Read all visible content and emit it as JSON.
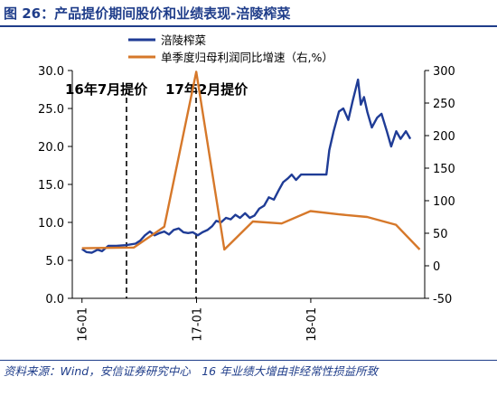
{
  "title": "图 26：产品提价期间股价和业绩表现-涪陵榨菜",
  "source": "资料来源：Wind，安信证券研究中心　16 年业绩大增由非经常性损益所致",
  "colors": {
    "blue": "#1f3c96",
    "orange": "#d6782a",
    "text_blue": "#1f3d8a"
  },
  "chart_data": {
    "type": "line",
    "title": "",
    "x_ticks": [
      "16-01",
      "17-01",
      "18-01"
    ],
    "y_left": {
      "range": [
        0,
        30
      ],
      "ticks": [
        "0.0",
        "5.0",
        "10.0",
        "15.0",
        "20.0",
        "25.0",
        "30.0"
      ]
    },
    "y_right": {
      "range": [
        -50,
        300
      ],
      "ticks": [
        "-50",
        "0",
        "50",
        "100",
        "150",
        "200",
        "250",
        "300"
      ]
    },
    "annotations": [
      {
        "label": "16年7月提价",
        "date": "2016-07"
      },
      {
        "label": "17年2月提价",
        "date": "2017-02"
      }
    ],
    "series": [
      {
        "name": "涪陵榨菜",
        "axis": "left",
        "points": [
          [
            "2016-01-01",
            6.5
          ],
          [
            "2016-01-15",
            6.1
          ],
          [
            "2016-02-01",
            6.0
          ],
          [
            "2016-02-20",
            6.4
          ],
          [
            "2016-03-05",
            6.2
          ],
          [
            "2016-03-25",
            6.9
          ],
          [
            "2016-04-20",
            6.9
          ],
          [
            "2016-05-20",
            7.0
          ],
          [
            "2016-06-20",
            7.2
          ],
          [
            "2016-07-05",
            7.6
          ],
          [
            "2016-07-20",
            8.3
          ],
          [
            "2016-08-05",
            8.8
          ],
          [
            "2016-08-20",
            8.3
          ],
          [
            "2016-09-05",
            8.6
          ],
          [
            "2016-09-20",
            8.8
          ],
          [
            "2016-10-05",
            8.4
          ],
          [
            "2016-10-20",
            9.0
          ],
          [
            "2016-11-05",
            9.2
          ],
          [
            "2016-11-20",
            8.7
          ],
          [
            "2016-12-05",
            8.6
          ],
          [
            "2016-12-20",
            8.7
          ],
          [
            "2017-01-05",
            8.3
          ],
          [
            "2017-01-20",
            8.7
          ],
          [
            "2017-02-05",
            9.0
          ],
          [
            "2017-02-20",
            9.5
          ],
          [
            "2017-03-05",
            10.2
          ],
          [
            "2017-03-20",
            10.0
          ],
          [
            "2017-04-05",
            10.6
          ],
          [
            "2017-04-20",
            10.4
          ],
          [
            "2017-05-05",
            11.0
          ],
          [
            "2017-05-20",
            10.6
          ],
          [
            "2017-06-05",
            11.2
          ],
          [
            "2017-06-20",
            10.6
          ],
          [
            "2017-07-05",
            10.9
          ],
          [
            "2017-07-20",
            11.8
          ],
          [
            "2017-08-05",
            12.2
          ],
          [
            "2017-08-20",
            13.3
          ],
          [
            "2017-09-05",
            13.0
          ],
          [
            "2017-09-20",
            14.2
          ],
          [
            "2017-10-05",
            15.3
          ],
          [
            "2017-10-20",
            15.8
          ],
          [
            "2017-11-01",
            16.3
          ],
          [
            "2017-11-15",
            15.6
          ],
          [
            "2017-12-01",
            16.3
          ],
          [
            "2017-12-20",
            16.3
          ],
          [
            "2018-01-10",
            16.3
          ],
          [
            "2018-02-01",
            16.3
          ],
          [
            "2018-02-20",
            16.3
          ],
          [
            "2018-03-01",
            19.5
          ],
          [
            "2018-03-15",
            22.0
          ],
          [
            "2018-04-01",
            24.6
          ],
          [
            "2018-04-15",
            25.0
          ],
          [
            "2018-05-01",
            23.5
          ],
          [
            "2018-05-15",
            26.0
          ],
          [
            "2018-06-01",
            28.8
          ],
          [
            "2018-06-10",
            25.5
          ],
          [
            "2018-06-20",
            26.5
          ],
          [
            "2018-07-01",
            24.5
          ],
          [
            "2018-07-15",
            22.5
          ],
          [
            "2018-08-01",
            23.8
          ],
          [
            "2018-08-15",
            24.3
          ],
          [
            "2018-09-01",
            22.0
          ],
          [
            "2018-09-15",
            20.0
          ],
          [
            "2018-10-01",
            22.0
          ],
          [
            "2018-10-15",
            21.0
          ],
          [
            "2018-11-01",
            22.0
          ],
          [
            "2018-11-15",
            21.0
          ]
        ]
      },
      {
        "name": "单季度归母利润同比增速（右,%）",
        "axis": "right",
        "points": [
          [
            "2016-01-01",
            27
          ],
          [
            "2016-06-15",
            28
          ],
          [
            "2016-09-20",
            60
          ],
          [
            "2016-12-31",
            298
          ],
          [
            "2017-03-31",
            25
          ],
          [
            "2017-06-30",
            68
          ],
          [
            "2017-09-30",
            65
          ],
          [
            "2017-12-31",
            84
          ],
          [
            "2018-03-31",
            79
          ],
          [
            "2018-06-30",
            75
          ],
          [
            "2018-09-30",
            63
          ],
          [
            "2018-12-15",
            25
          ]
        ]
      }
    ],
    "legend_position": "top-right",
    "grid": false
  }
}
